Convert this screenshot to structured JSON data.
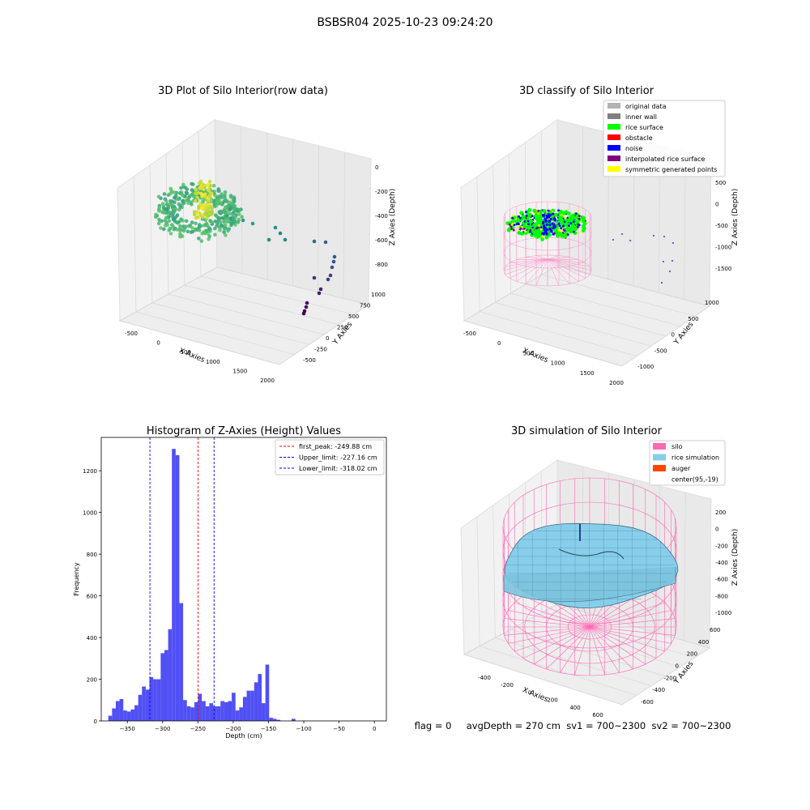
{
  "suptitle": "BSBSR04 2025-10-23 09:24:20",
  "footer": "flag = 0     avgDepth = 270 cm  sv1 = 700~2300  sv2 = 700~2300",
  "chart_data": [
    {
      "type": "scatter3d",
      "title": "3D Plot of Silo Interior(row data)",
      "xlabel": "X Axies",
      "ylabel": "Y Axies",
      "zlabel": "Z Axies (Depth)",
      "x_ticks": [
        "-500",
        "0",
        "500",
        "1000",
        "1500",
        "2000"
      ],
      "y_ticks": [
        "-500",
        "-250",
        "0",
        "250",
        "500",
        "750",
        "1000"
      ],
      "z_ticks": [
        "0",
        "-200",
        "-400",
        "-600",
        "-800"
      ],
      "colormap": "viridis"
    },
    {
      "type": "scatter3d",
      "title": "3D classify of Silo Interior",
      "xlabel": "X Axies",
      "ylabel": "Y Axies",
      "zlabel": "Z Axies (Depth)",
      "x_ticks": [
        "-500",
        "0",
        "500",
        "1000",
        "1500",
        "2000"
      ],
      "y_ticks": [
        "-1000",
        "-500",
        "0",
        "500",
        "1000"
      ],
      "z_ticks": [
        "500",
        "0",
        "-500",
        "-1000",
        "-1500"
      ],
      "legend_position": "top-right",
      "legend": [
        {
          "label": "original data",
          "color": "#b3b3b3"
        },
        {
          "label": "inner wall",
          "color": "#808080"
        },
        {
          "label": "rice surface",
          "color": "#00ff00"
        },
        {
          "label": "obstacle",
          "color": "#ff0000"
        },
        {
          "label": "noise",
          "color": "#0000ff"
        },
        {
          "label": "interpolated rice surface",
          "color": "#800080"
        },
        {
          "label": "symmetric generated points",
          "color": "#ffff00"
        }
      ]
    },
    {
      "type": "bar",
      "title": "Histogram of Z-Axies (Height) Values",
      "xlabel": "Depth (cm)",
      "ylabel": "Frequency",
      "xlim": [
        -387,
        17
      ],
      "ylim": [
        0,
        1360
      ],
      "x_ticks": [
        -350,
        -300,
        -250,
        -200,
        -150,
        -100,
        -50,
        0
      ],
      "y_ticks": [
        0,
        200,
        400,
        600,
        800,
        1000,
        1200
      ],
      "bar_color": "#5050f5",
      "bin_start": -377,
      "bin_width": 5.3,
      "values": [
        25,
        60,
        95,
        105,
        50,
        45,
        55,
        75,
        125,
        165,
        150,
        210,
        200,
        200,
        325,
        340,
        440,
        1305,
        1275,
        565,
        100,
        70,
        65,
        90,
        130,
        95,
        70,
        85,
        70,
        70,
        95,
        90,
        95,
        135,
        50,
        65,
        115,
        145,
        145,
        185,
        225,
        85,
        270,
        15,
        10,
        5,
        0,
        0,
        0,
        10
      ],
      "vlines": [
        {
          "label": "first_peak: -249.88 cm",
          "x": -249.88,
          "color": "#ff0000"
        },
        {
          "label": "Upper_limit: -227.16 cm",
          "x": -227.16,
          "color": "#0000ff"
        },
        {
          "label": "Lower_limit: -318.02 cm",
          "x": -318.02,
          "color": "#0000ff"
        }
      ],
      "legend_position": "top-right"
    },
    {
      "type": "surface3d",
      "title": "3D simulation of Silo Interior",
      "xlabel": "X Axies",
      "ylabel": "Y Axies",
      "zlabel": "Z Axies (Depth)",
      "x_ticks": [
        "-400",
        "-200",
        "0",
        "200",
        "400",
        "600"
      ],
      "y_ticks": [
        "-600",
        "-400",
        "-200",
        "0",
        "200",
        "400",
        "600"
      ],
      "z_ticks": [
        "200",
        "0",
        "-200",
        "-400",
        "-600",
        "-800",
        "-1000"
      ],
      "legend_position": "top-right",
      "legend": [
        {
          "label": "silo",
          "color": "#ff69b4"
        },
        {
          "label": "rice simulation",
          "color": "#87ceeb"
        },
        {
          "label": "auger",
          "color": "#ff4500"
        },
        {
          "label": "center(95,-19)",
          "color": "#ffffff"
        }
      ]
    }
  ]
}
